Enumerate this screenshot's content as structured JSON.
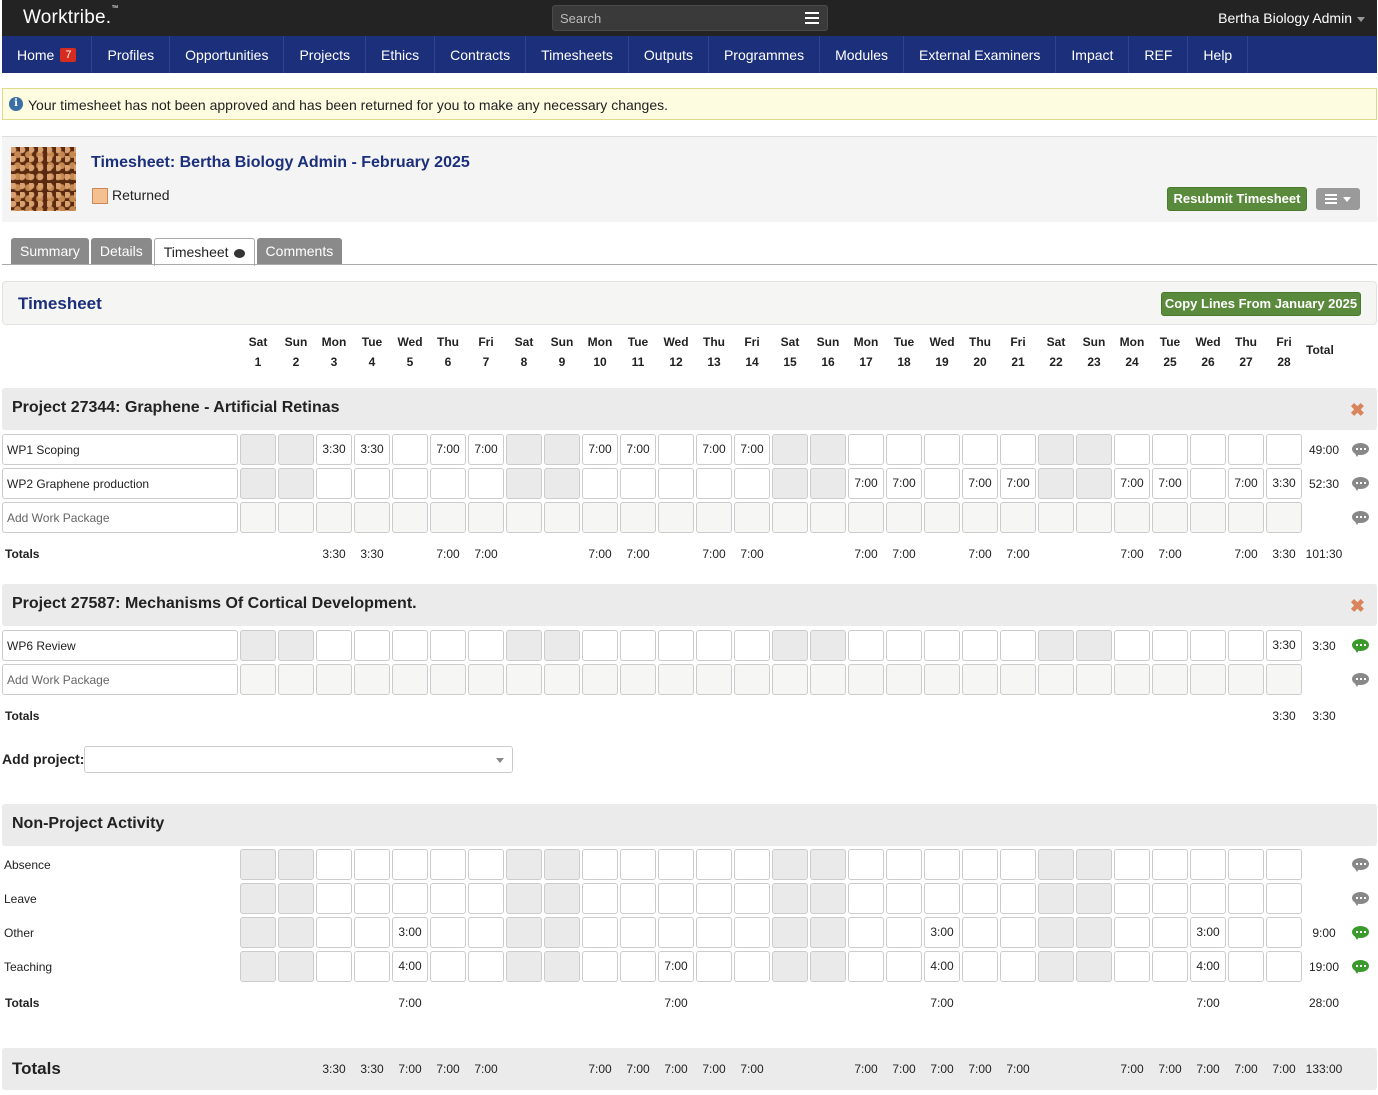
{
  "app": {
    "logo": "Worktribe.",
    "logo_tm": "™",
    "search_placeholder": "Search",
    "user": "Bertha Biology Admin"
  },
  "nav": [
    {
      "label": "Home",
      "badge": "7"
    },
    {
      "label": "Profiles"
    },
    {
      "label": "Opportunities"
    },
    {
      "label": "Projects"
    },
    {
      "label": "Ethics"
    },
    {
      "label": "Contracts"
    },
    {
      "label": "Timesheets"
    },
    {
      "label": "Outputs"
    },
    {
      "label": "Programmes"
    },
    {
      "label": "Modules"
    },
    {
      "label": "External Examiners"
    },
    {
      "label": "Impact"
    },
    {
      "label": "REF"
    },
    {
      "label": "Help"
    }
  ],
  "alert": {
    "icon": "info-icon",
    "text": "Your timesheet has not been approved and has been returned for you to make any necessary changes."
  },
  "header": {
    "title": "Timesheet: Bertha Biology Admin - February 2025",
    "status": "Returned",
    "status_color": "#f5c08f",
    "resubmit_label": "Resubmit Timesheet"
  },
  "tabs": [
    {
      "label": "Summary",
      "active": false
    },
    {
      "label": "Details",
      "active": false
    },
    {
      "label": "Timesheet",
      "active": true,
      "icon": "comments-icon"
    },
    {
      "label": "Comments",
      "active": false
    }
  ],
  "timesheet_panel": {
    "title": "Timesheet",
    "copy_label": "Copy Lines From January 2025"
  },
  "days": [
    {
      "dow": "Sat",
      "d": "1",
      "we": true
    },
    {
      "dow": "Sun",
      "d": "2",
      "we": true
    },
    {
      "dow": "Mon",
      "d": "3"
    },
    {
      "dow": "Tue",
      "d": "4"
    },
    {
      "dow": "Wed",
      "d": "5"
    },
    {
      "dow": "Thu",
      "d": "6"
    },
    {
      "dow": "Fri",
      "d": "7"
    },
    {
      "dow": "Sat",
      "d": "8",
      "we": true
    },
    {
      "dow": "Sun",
      "d": "9",
      "we": true
    },
    {
      "dow": "Mon",
      "d": "10"
    },
    {
      "dow": "Tue",
      "d": "11"
    },
    {
      "dow": "Wed",
      "d": "12"
    },
    {
      "dow": "Thu",
      "d": "13"
    },
    {
      "dow": "Fri",
      "d": "14"
    },
    {
      "dow": "Sat",
      "d": "15",
      "we": true
    },
    {
      "dow": "Sun",
      "d": "16",
      "we": true
    },
    {
      "dow": "Mon",
      "d": "17"
    },
    {
      "dow": "Tue",
      "d": "18"
    },
    {
      "dow": "Wed",
      "d": "19"
    },
    {
      "dow": "Thu",
      "d": "20"
    },
    {
      "dow": "Fri",
      "d": "21"
    },
    {
      "dow": "Sat",
      "d": "22",
      "we": true
    },
    {
      "dow": "Sun",
      "d": "23",
      "we": true
    },
    {
      "dow": "Mon",
      "d": "24"
    },
    {
      "dow": "Tue",
      "d": "25"
    },
    {
      "dow": "Wed",
      "d": "26"
    },
    {
      "dow": "Thu",
      "d": "27"
    },
    {
      "dow": "Fri",
      "d": "28"
    }
  ],
  "total_header": "Total",
  "projects": [
    {
      "title": "Project 27344: Graphene - Artificial Retinas",
      "rows": [
        {
          "label": "WP1 Scoping",
          "cells": [
            "",
            "",
            "3:30",
            "3:30",
            "",
            "7:00",
            "7:00",
            "",
            "",
            "7:00",
            "7:00",
            "",
            "7:00",
            "7:00",
            "",
            "",
            "",
            "",
            "",
            "",
            "",
            "",
            "",
            "",
            "",
            "",
            "",
            ""
          ],
          "total": "49:00",
          "comment_active": false
        },
        {
          "label": "WP2 Graphene production",
          "cells": [
            "",
            "",
            "",
            "",
            "",
            "",
            "",
            "",
            "",
            "",
            "",
            "",
            "",
            "",
            "",
            "",
            "7:00",
            "7:00",
            "",
            "7:00",
            "7:00",
            "",
            "",
            "7:00",
            "7:00",
            "",
            "7:00",
            "3:30"
          ],
          "total": "52:30",
          "comment_active": false
        }
      ],
      "add_label": "Add Work Package",
      "totals_label": "Totals",
      "totals": [
        "",
        "",
        "3:30",
        "3:30",
        "",
        "7:00",
        "7:00",
        "",
        "",
        "7:00",
        "7:00",
        "",
        "7:00",
        "7:00",
        "",
        "",
        "7:00",
        "7:00",
        "",
        "7:00",
        "7:00",
        "",
        "",
        "7:00",
        "7:00",
        "",
        "7:00",
        "3:30"
      ],
      "grand": "101:30"
    },
    {
      "title": "Project 27587: Mechanisms Of Cortical Development.",
      "rows": [
        {
          "label": "WP6 Review",
          "cells": [
            "",
            "",
            "",
            "",
            "",
            "",
            "",
            "",
            "",
            "",
            "",
            "",
            "",
            "",
            "",
            "",
            "",
            "",
            "",
            "",
            "",
            "",
            "",
            "",
            "",
            "",
            "",
            "3:30"
          ],
          "total": "3:30",
          "comment_active": true
        }
      ],
      "add_label": "Add Work Package",
      "totals_label": "Totals",
      "totals": [
        "",
        "",
        "",
        "",
        "",
        "",
        "",
        "",
        "",
        "",
        "",
        "",
        "",
        "",
        "",
        "",
        "",
        "",
        "",
        "",
        "",
        "",
        "",
        "",
        "",
        "",
        "",
        "3:30"
      ],
      "grand": "3:30"
    }
  ],
  "add_project_label": "Add project:",
  "non_project": {
    "title": "Non-Project Activity",
    "rows": [
      {
        "label": "Absence",
        "cells": [
          "",
          "",
          "",
          "",
          "",
          "",
          "",
          "",
          "",
          "",
          "",
          "",
          "",
          "",
          "",
          "",
          "",
          "",
          "",
          "",
          "",
          "",
          "",
          "",
          "",
          "",
          "",
          ""
        ],
        "total": "",
        "comment_active": false
      },
      {
        "label": "Leave",
        "cells": [
          "",
          "",
          "",
          "",
          "",
          "",
          "",
          "",
          "",
          "",
          "",
          "",
          "",
          "",
          "",
          "",
          "",
          "",
          "",
          "",
          "",
          "",
          "",
          "",
          "",
          "",
          "",
          ""
        ],
        "total": "",
        "comment_active": false
      },
      {
        "label": "Other",
        "cells": [
          "",
          "",
          "",
          "",
          "3:00",
          "",
          "",
          "",
          "",
          "",
          "",
          "",
          "",
          "",
          "",
          "",
          "",
          "",
          "3:00",
          "",
          "",
          "",
          "",
          "",
          "",
          "3:00",
          "",
          ""
        ],
        "total": "9:00",
        "comment_active": true
      },
      {
        "label": "Teaching",
        "cells": [
          "",
          "",
          "",
          "",
          "4:00",
          "",
          "",
          "",
          "",
          "",
          "",
          "7:00",
          "",
          "",
          "",
          "",
          "",
          "",
          "4:00",
          "",
          "",
          "",
          "",
          "",
          "",
          "4:00",
          "",
          ""
        ],
        "total": "19:00",
        "comment_active": true
      }
    ],
    "totals_label": "Totals",
    "totals": [
      "",
      "",
      "",
      "",
      "7:00",
      "",
      "",
      "",
      "",
      "",
      "",
      "7:00",
      "",
      "",
      "",
      "",
      "",
      "",
      "7:00",
      "",
      "",
      "",
      "",
      "",
      "",
      "7:00",
      "",
      ""
    ],
    "grand": "28:00"
  },
  "grand_totals": {
    "label": "Totals",
    "values": [
      "",
      "",
      "3:30",
      "3:30",
      "7:00",
      "7:00",
      "7:00",
      "",
      "",
      "7:00",
      "7:00",
      "7:00",
      "7:00",
      "7:00",
      "",
      "",
      "7:00",
      "7:00",
      "7:00",
      "7:00",
      "7:00",
      "",
      "",
      "7:00",
      "7:00",
      "7:00",
      "7:00",
      "7:00"
    ],
    "grand": "133:00"
  },
  "colors": {
    "nav_bg": "#1b2f7a",
    "topbar_bg": "#232323",
    "action_green": "#5a8a3c",
    "comment_grey": "#888888",
    "comment_green": "#3a9a2c",
    "remove_orange": "#d9845a"
  }
}
